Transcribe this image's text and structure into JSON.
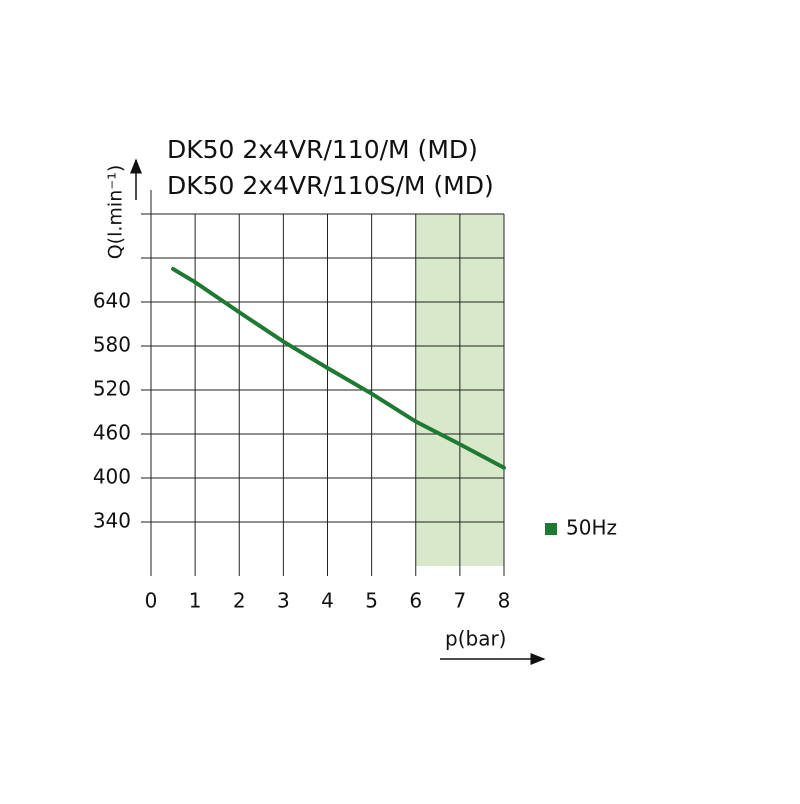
{
  "chart_data": {
    "type": "line",
    "title_lines": [
      "DK50 2x4VR/110/M (MD)",
      "DK50 2x4VR/110S/M (MD)"
    ],
    "x_label": "p(bar)",
    "y_label": "Q(l.min⁻¹)",
    "x": [
      0.5,
      1,
      2,
      3,
      4,
      5,
      6,
      7,
      8
    ],
    "series": [
      {
        "name": "50Hz",
        "color": "#1e7a32",
        "values": [
          685,
          667,
          626,
          586,
          550,
          515,
          477,
          446,
          414
        ]
      }
    ],
    "xlim": [
      0,
      8
    ],
    "xticks": [
      0,
      1,
      2,
      3,
      4,
      5,
      6,
      7,
      8
    ],
    "ylim": [
      280,
      760
    ],
    "yticks": [
      340,
      400,
      460,
      520,
      580,
      640,
      {
        "value": 700,
        "label": null
      },
      {
        "value": 760,
        "label": null
      }
    ],
    "grid": true,
    "shaded_xrange": [
      6,
      8
    ],
    "shade_color": "#d7e8cb",
    "legend": "right"
  }
}
